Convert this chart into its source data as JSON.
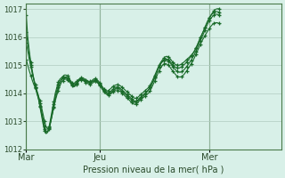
{
  "bg_color": "#d8f0e8",
  "grid_color": "#b0ccc0",
  "line_color": "#1a6b2a",
  "marker_color": "#1a6b2a",
  "xlabel_label": "Pression niveau de la mer( hPa )",
  "ylim": [
    1012,
    1017.2
  ],
  "yticks": [
    1012,
    1013,
    1014,
    1015,
    1016,
    1017
  ],
  "xtick_labels": [
    "Mar",
    "Jeu",
    "Mer"
  ],
  "xtick_positions": [
    0,
    48,
    120
  ],
  "total_points": 168,
  "series1_start": [
    1016.8,
    1016.0,
    1015.5,
    1015.1,
    1014.8,
    1014.5,
    1014.2,
    1014.0,
    1013.8,
    1013.5,
    1013.2,
    1012.9,
    1012.65,
    1012.55,
    1012.6,
    1012.8,
    1013.1,
    1013.4,
    1013.7,
    1014.0,
    1014.2,
    1014.4,
    1014.5,
    1014.55
  ],
  "series1_mid": [
    1014.6,
    1014.65,
    1014.65,
    1014.62,
    1014.55,
    1014.45,
    1014.38,
    1014.35,
    1014.38,
    1014.42,
    1014.48,
    1014.52,
    1014.55,
    1014.55,
    1014.52,
    1014.48,
    1014.45,
    1014.42,
    1014.42,
    1014.45,
    1014.5,
    1014.52,
    1014.5,
    1014.45,
    1014.38,
    1014.3,
    1014.22,
    1014.15,
    1014.1,
    1014.08,
    1014.1,
    1014.15,
    1014.2,
    1014.25,
    1014.28,
    1014.3,
    1014.3,
    1014.28,
    1014.25,
    1014.2,
    1014.15,
    1014.1,
    1014.05,
    1014.0,
    1013.95,
    1013.9,
    1013.85,
    1013.82,
    1013.82,
    1013.85,
    1013.9,
    1013.95,
    1014.0,
    1014.05,
    1014.1,
    1014.15,
    1014.2,
    1014.28,
    1014.38,
    1014.5,
    1014.62,
    1014.75,
    1014.88,
    1015.0,
    1015.1,
    1015.18,
    1015.25,
    1015.3,
    1015.32,
    1015.3,
    1015.25,
    1015.18
  ],
  "series1_end": [
    1015.1,
    1015.05,
    1015.02,
    1015.0,
    1015.0,
    1015.02,
    1015.05,
    1015.1,
    1015.15,
    1015.2,
    1015.25,
    1015.3,
    1015.35,
    1015.42,
    1015.5,
    1015.6,
    1015.72,
    1015.85,
    1015.98,
    1016.1,
    1016.22,
    1016.35,
    1016.48,
    1016.6,
    1016.7,
    1016.8,
    1016.88,
    1016.95,
    1017.0,
    1017.02,
    1017.02,
    1017.0
  ],
  "series2_start": [
    1016.2,
    1015.8,
    1015.4,
    1015.0,
    1014.7,
    1014.45,
    1014.2,
    1014.0,
    1013.8,
    1013.55,
    1013.28,
    1013.0,
    1012.72,
    1012.58,
    1012.6,
    1012.75,
    1013.0,
    1013.3,
    1013.6,
    1013.9,
    1014.1,
    1014.3,
    1014.42,
    1014.5
  ],
  "series2_mid": [
    1014.55,
    1014.58,
    1014.58,
    1014.55,
    1014.5,
    1014.42,
    1014.35,
    1014.3,
    1014.32,
    1014.38,
    1014.45,
    1014.5,
    1014.52,
    1014.5,
    1014.48,
    1014.45,
    1014.42,
    1014.4,
    1014.4,
    1014.42,
    1014.45,
    1014.48,
    1014.48,
    1014.42,
    1014.35,
    1014.28,
    1014.2,
    1014.12,
    1014.06,
    1014.02,
    1014.02,
    1014.05,
    1014.1,
    1014.15,
    1014.2,
    1014.22,
    1014.22,
    1014.2,
    1014.15,
    1014.1,
    1014.05,
    1014.0,
    1013.95,
    1013.9,
    1013.85,
    1013.8,
    1013.75,
    1013.72,
    1013.72,
    1013.75,
    1013.8,
    1013.85,
    1013.9,
    1013.95,
    1014.0,
    1014.05,
    1014.12,
    1014.2,
    1014.3,
    1014.42,
    1014.55,
    1014.68,
    1014.82,
    1014.95,
    1015.05,
    1015.12,
    1015.18,
    1015.22,
    1015.22,
    1015.2,
    1015.15,
    1015.08
  ],
  "series2_end": [
    1015.0,
    1014.95,
    1014.92,
    1014.9,
    1014.9,
    1014.92,
    1014.95,
    1015.0,
    1015.05,
    1015.12,
    1015.18,
    1015.25,
    1015.32,
    1015.4,
    1015.5,
    1015.6,
    1015.72,
    1015.85,
    1015.98,
    1016.1,
    1016.22,
    1016.35,
    1016.48,
    1016.6,
    1016.7,
    1016.78,
    1016.85,
    1016.9,
    1016.92,
    1016.92,
    1016.9,
    1016.88
  ],
  "series3_start": [
    1015.8,
    1015.5,
    1015.2,
    1014.95,
    1014.72,
    1014.5,
    1014.3,
    1014.1,
    1013.9,
    1013.65,
    1013.38,
    1013.1,
    1012.82,
    1012.65,
    1012.62,
    1012.72,
    1012.95,
    1013.22,
    1013.5,
    1013.78,
    1014.0,
    1014.2,
    1014.35,
    1014.45
  ],
  "series3_mid": [
    1014.52,
    1014.55,
    1014.55,
    1014.52,
    1014.46,
    1014.38,
    1014.3,
    1014.25,
    1014.28,
    1014.35,
    1014.42,
    1014.48,
    1014.5,
    1014.48,
    1014.45,
    1014.42,
    1014.4,
    1014.38,
    1014.38,
    1014.4,
    1014.42,
    1014.45,
    1014.42,
    1014.38,
    1014.3,
    1014.22,
    1014.15,
    1014.08,
    1014.02,
    1013.98,
    1013.98,
    1014.0,
    1014.05,
    1014.1,
    1014.15,
    1014.18,
    1014.18,
    1014.15,
    1014.1,
    1014.05,
    1014.0,
    1013.95,
    1013.9,
    1013.85,
    1013.8,
    1013.75,
    1013.7,
    1013.68,
    1013.68,
    1013.72,
    1013.78,
    1013.82,
    1013.88,
    1013.92,
    1013.98,
    1014.05,
    1014.12,
    1014.2,
    1014.3,
    1014.42,
    1014.55,
    1014.68,
    1014.82,
    1014.95,
    1015.05,
    1015.12,
    1015.18,
    1015.2,
    1015.18,
    1015.15,
    1015.1,
    1015.02
  ],
  "series3_end": [
    1014.95,
    1014.88,
    1014.82,
    1014.78,
    1014.75,
    1014.75,
    1014.78,
    1014.82,
    1014.88,
    1014.95,
    1015.02,
    1015.1,
    1015.18,
    1015.28,
    1015.38,
    1015.5,
    1015.62,
    1015.75,
    1015.88,
    1016.0,
    1016.12,
    1016.25,
    1016.38,
    1016.5,
    1016.6,
    1016.68,
    1016.75,
    1016.8,
    1016.82,
    1016.82,
    1016.8,
    1016.78
  ],
  "series4_start": [
    1015.2,
    1015.0,
    1014.8,
    1014.62,
    1014.45,
    1014.3,
    1014.18,
    1014.05,
    1013.9,
    1013.72,
    1013.5,
    1013.25,
    1013.0,
    1012.8,
    1012.72,
    1012.78,
    1012.98,
    1013.22,
    1013.48,
    1013.72,
    1013.92,
    1014.1,
    1014.25,
    1014.38
  ],
  "series4_mid": [
    1014.45,
    1014.5,
    1014.5,
    1014.48,
    1014.42,
    1014.35,
    1014.28,
    1014.22,
    1014.25,
    1014.32,
    1014.4,
    1014.46,
    1014.48,
    1014.46,
    1014.42,
    1014.38,
    1014.35,
    1014.33,
    1014.32,
    1014.35,
    1014.38,
    1014.42,
    1014.4,
    1014.35,
    1014.28,
    1014.2,
    1014.12,
    1014.05,
    1013.98,
    1013.94,
    1013.94,
    1013.96,
    1014.0,
    1014.05,
    1014.1,
    1014.12,
    1014.1,
    1014.08,
    1014.04,
    1013.98,
    1013.94,
    1013.88,
    1013.82,
    1013.78,
    1013.72,
    1013.66,
    1013.62,
    1013.6,
    1013.62,
    1013.66,
    1013.72,
    1013.78,
    1013.82,
    1013.86,
    1013.9,
    1013.95,
    1014.0,
    1014.08,
    1014.18,
    1014.3,
    1014.42,
    1014.55,
    1014.68,
    1014.8,
    1014.9,
    1014.98,
    1015.04,
    1015.06,
    1015.04,
    1015.0,
    1014.94,
    1014.86
  ],
  "series4_end": [
    1014.78,
    1014.72,
    1014.65,
    1014.6,
    1014.58,
    1014.58,
    1014.6,
    1014.65,
    1014.72,
    1014.8,
    1014.88,
    1014.96,
    1015.05,
    1015.15,
    1015.25,
    1015.38,
    1015.5,
    1015.62,
    1015.75,
    1015.86,
    1015.96,
    1016.05,
    1016.15,
    1016.24,
    1016.32,
    1016.4,
    1016.46,
    1016.5,
    1016.52,
    1016.52,
    1016.5,
    1016.48
  ]
}
